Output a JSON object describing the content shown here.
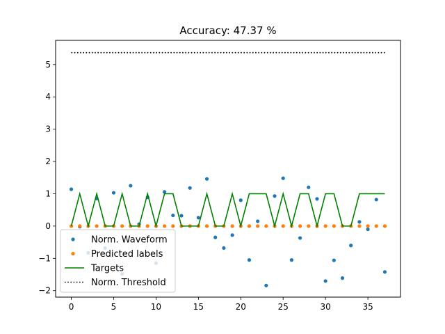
{
  "chart_data": {
    "type": "scatter",
    "title": "Accuracy: 47.37 %",
    "xlabel": "",
    "ylabel": "",
    "xlim": [
      -1.85,
      38.85
    ],
    "ylim": [
      -2.2,
      5.75
    ],
    "xticks": [
      0,
      5,
      10,
      15,
      20,
      25,
      30,
      35
    ],
    "yticks": [
      -2,
      -1,
      0,
      1,
      2,
      3,
      4,
      5
    ],
    "grid": false,
    "legend_position": "lower-left",
    "series": [
      {
        "name": "Norm. Waveform",
        "kind": "points",
        "color": "#1f77b4",
        "x": [
          0,
          1,
          2,
          3,
          4,
          5,
          6,
          7,
          8,
          9,
          10,
          11,
          12,
          13,
          14,
          15,
          16,
          17,
          18,
          19,
          20,
          21,
          22,
          23,
          24,
          25,
          26,
          27,
          28,
          29,
          30,
          31,
          32,
          33,
          34,
          35,
          36,
          37
        ],
        "y": [
          1.14,
          -0.02,
          -0.83,
          0.85,
          -0.68,
          1.03,
          -1.48,
          1.25,
          0.06,
          0.89,
          -1.15,
          1.06,
          0.33,
          0.32,
          1.18,
          0.26,
          1.46,
          -0.35,
          -0.68,
          -0.28,
          0.8,
          -1.05,
          0.15,
          -1.84,
          0.93,
          1.48,
          -1.05,
          -0.37,
          1.2,
          0.84,
          -1.7,
          -1.06,
          -1.61,
          -0.6,
          0.13,
          -0.1,
          0.82,
          -1.42
        ]
      },
      {
        "name": "Predicted labels",
        "kind": "points",
        "color": "#ff7f0e",
        "x": [
          0,
          1,
          2,
          3,
          4,
          5,
          6,
          7,
          8,
          9,
          10,
          11,
          12,
          13,
          14,
          15,
          16,
          17,
          18,
          19,
          20,
          21,
          22,
          23,
          24,
          25,
          26,
          27,
          28,
          29,
          30,
          31,
          32,
          33,
          34,
          35,
          36,
          37
        ],
        "y": [
          0,
          0,
          0,
          0,
          0,
          0,
          0,
          0,
          0,
          0,
          0,
          0,
          0,
          0,
          0,
          0,
          0,
          0,
          0,
          0,
          0,
          0,
          0,
          0,
          0,
          0,
          0,
          0,
          0,
          0,
          0,
          0,
          0,
          0,
          0,
          0,
          0,
          0
        ]
      },
      {
        "name": "Targets",
        "kind": "line",
        "color": "#008000",
        "x": [
          0,
          1,
          2,
          3,
          4,
          5,
          6,
          7,
          8,
          9,
          10,
          11,
          12,
          13,
          14,
          15,
          16,
          17,
          18,
          19,
          20,
          21,
          22,
          23,
          24,
          25,
          26,
          27,
          28,
          29,
          30,
          31,
          32,
          33,
          34,
          35,
          36,
          37
        ],
        "y": [
          0,
          1,
          0,
          1,
          0,
          0,
          1,
          0,
          0,
          1,
          0,
          1,
          1,
          0,
          0,
          0,
          1,
          0,
          0,
          1,
          0,
          1,
          1,
          1,
          0,
          1,
          0,
          1,
          1,
          0,
          1,
          1,
          0,
          0,
          1,
          1,
          1,
          1
        ]
      },
      {
        "name": "Norm. Threshold",
        "kind": "dotted-line",
        "color": "#000000",
        "x": [
          0,
          37
        ],
        "y": [
          5.37,
          5.37
        ]
      }
    ]
  }
}
